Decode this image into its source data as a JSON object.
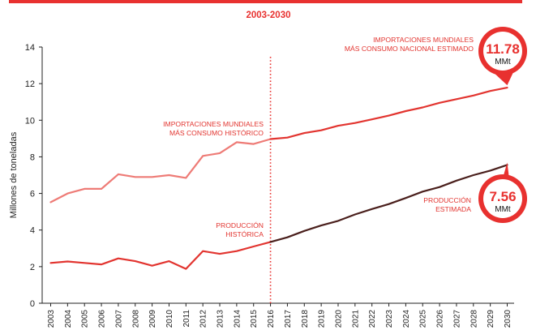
{
  "chart_data": {
    "type": "line",
    "subtitle": "2003-2030",
    "ylabel": "Millones de toneladas",
    "ylim": [
      0,
      14
    ],
    "yticks": [
      0,
      2,
      4,
      6,
      8,
      10,
      12,
      14
    ],
    "x": [
      2003,
      2004,
      2005,
      2006,
      2007,
      2008,
      2009,
      2010,
      2011,
      2012,
      2013,
      2014,
      2015,
      2016,
      2017,
      2018,
      2019,
      2020,
      2021,
      2022,
      2023,
      2024,
      2025,
      2026,
      2027,
      2028,
      2029,
      2030
    ],
    "divider_year": 2016,
    "divider_style": "dotted",
    "grid": false,
    "series": [
      {
        "name": "IMPORTACIONES MUNDIALES MÁS CONSUMO HISTÓRICO",
        "x": [
          2003,
          2004,
          2005,
          2006,
          2007,
          2008,
          2009,
          2010,
          2011,
          2012,
          2013,
          2014,
          2015,
          2016
        ],
        "values": [
          5.52,
          6.0,
          6.25,
          6.25,
          7.05,
          6.9,
          6.9,
          7.0,
          6.85,
          8.05,
          8.2,
          8.8,
          8.7,
          8.97
        ],
        "color": "#ee7b76"
      },
      {
        "name": "IMPORTACIONES MUNDIALES MÁS CONSUMO NACIONAL ESTIMADO",
        "x": [
          2016,
          2017,
          2018,
          2019,
          2020,
          2021,
          2022,
          2023,
          2024,
          2025,
          2026,
          2027,
          2028,
          2029,
          2030
        ],
        "values": [
          8.97,
          9.05,
          9.3,
          9.45,
          9.7,
          9.85,
          10.05,
          10.25,
          10.5,
          10.7,
          10.95,
          11.15,
          11.35,
          11.6,
          11.78
        ],
        "color": "#e2342f"
      },
      {
        "name": "PRODUCCIÓN HISTÓRICA",
        "x": [
          2003,
          2004,
          2005,
          2006,
          2007,
          2008,
          2009,
          2010,
          2011,
          2012,
          2013,
          2014,
          2015,
          2016
        ],
        "values": [
          2.2,
          2.28,
          2.2,
          2.12,
          2.45,
          2.3,
          2.05,
          2.3,
          1.88,
          2.85,
          2.7,
          2.85,
          3.1,
          3.35
        ],
        "color": "#e2342f"
      },
      {
        "name": "PRODUCCIÓN ESTIMADA",
        "x": [
          2016,
          2017,
          2018,
          2019,
          2020,
          2021,
          2022,
          2023,
          2024,
          2025,
          2026,
          2027,
          2028,
          2029,
          2030
        ],
        "values": [
          3.35,
          3.6,
          3.95,
          4.25,
          4.5,
          4.85,
          5.15,
          5.42,
          5.75,
          6.1,
          6.35,
          6.7,
          7.0,
          7.25,
          7.56
        ],
        "color": "#4a1f1c"
      }
    ],
    "labels": [
      {
        "lines": [
          "IMPORTACIONES MUNDIALES",
          "MÁS CONSUMO HISTÓRICO"
        ],
        "color": "#e2342f"
      },
      {
        "lines": [
          "IMPORTACIONES MUNDIALES",
          "MÁS CONSUMO NACIONAL ESTIMADO"
        ],
        "color": "#e2342f"
      },
      {
        "lines": [
          "PRODUCCIÓN",
          "HISTÓRICA"
        ],
        "color": "#e2342f"
      },
      {
        "lines": [
          "PRODUCCIÓN",
          "ESTIMADA"
        ],
        "color": "#e2342f"
      }
    ],
    "callouts": [
      {
        "value": "11.78",
        "unit": "MMt",
        "year": 2030,
        "y": 11.78
      },
      {
        "value": "7.56",
        "unit": "MMt",
        "year": 2030,
        "y": 7.56
      }
    ],
    "colors": {
      "accent": "#e8312f",
      "dark": "#4a1f1c",
      "light": "#ee7b76",
      "axis": "#222222"
    }
  }
}
